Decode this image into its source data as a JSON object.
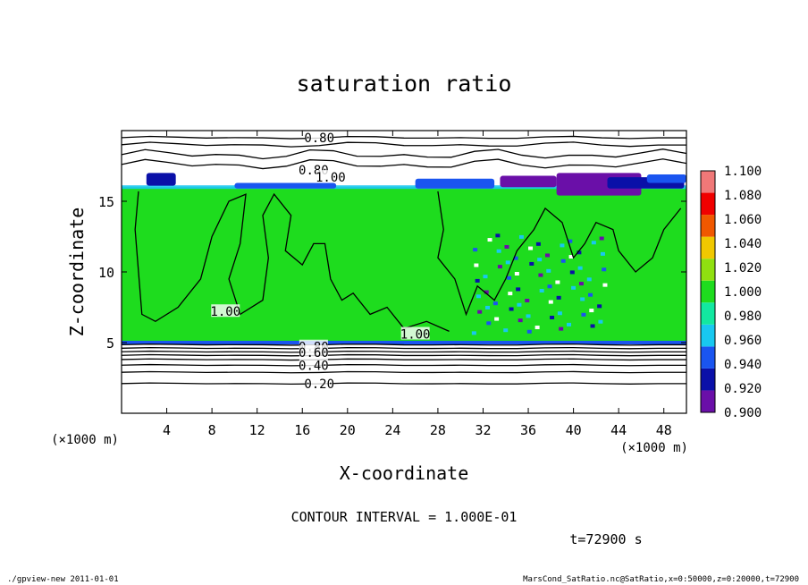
{
  "chart_data": {
    "type": "heatmap",
    "title": "saturation ratio",
    "xlabel": "X-coordinate",
    "ylabel": "Z-coordinate",
    "x_unit_left": "(×1000 m)",
    "x_unit_right": "(×1000 m)",
    "xlim": [
      0,
      50
    ],
    "ylim": [
      0,
      20
    ],
    "x_ticks": [
      4,
      8,
      12,
      16,
      20,
      24,
      28,
      32,
      36,
      40,
      44,
      48
    ],
    "y_ticks": [
      5,
      10,
      15
    ],
    "colorbar": {
      "levels": [
        0.9,
        0.92,
        0.94,
        0.96,
        0.98,
        1.0,
        1.02,
        1.04,
        1.06,
        1.08,
        1.1
      ],
      "labels": [
        "0.900",
        "0.920",
        "0.940",
        "0.960",
        "0.980",
        "1.000",
        "1.020",
        "1.040",
        "1.060",
        "1.080",
        "1.100"
      ],
      "colors": [
        "#6a0fa8",
        "#0a10a8",
        "#1a55f0",
        "#18c8f0",
        "#12e8a0",
        "#1edc1e",
        "#90e010",
        "#f0c800",
        "#f05800",
        "#f00000",
        "#f07878"
      ]
    },
    "contour_interval_label": "CONTOUR INTERVAL = 1.000E-01",
    "contour_labels": [
      {
        "text": "0.80",
        "x": 17.5,
        "z": 19.5
      },
      {
        "text": "0.80",
        "x": 17.0,
        "z": 17.2
      },
      {
        "text": "1.00",
        "x": 18.5,
        "z": 16.7
      },
      {
        "text": "1.00",
        "x": 9.2,
        "z": 7.2
      },
      {
        "text": "1.00",
        "x": 26.0,
        "z": 5.6
      },
      {
        "text": "0.80",
        "x": 17.0,
        "z": 4.7
      },
      {
        "text": "0.60",
        "x": 17.0,
        "z": 4.3
      },
      {
        "text": "0.40",
        "x": 17.0,
        "z": 3.4
      },
      {
        "text": "0.20",
        "x": 17.5,
        "z": 2.1
      }
    ],
    "fields": {
      "cloud_layer_z": [
        5.0,
        16.0
      ],
      "background_value": 1.0
    }
  },
  "time_label": "t=72900 s",
  "footer_left": "./gpview-new   2011-01-01",
  "footer_right": "MarsCond_SatRatio.nc@SatRatio,x=0:50000,z=0:20000,t=72900"
}
